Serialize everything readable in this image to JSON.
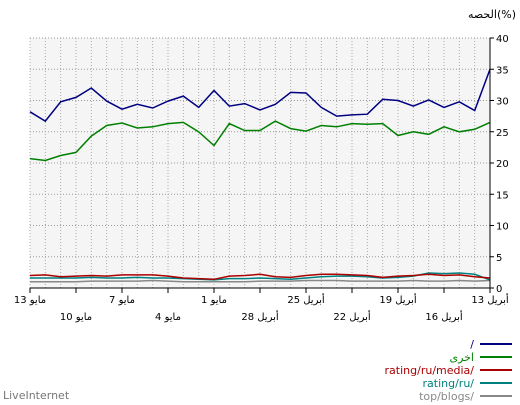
{
  "brand": "LiveInternet",
  "chart_data": {
    "type": "line",
    "ylabel": "الحصه(%)",
    "ylim": [
      0,
      40
    ],
    "yticks": [
      0,
      5,
      10,
      15,
      20,
      25,
      30,
      35,
      40
    ],
    "grid": true,
    "legend_position": "bottom-right",
    "x_tick_labels_upper": [
      "13 مايو",
      "7 مايو",
      "1 مايو",
      "25 أبريل",
      "19 أبريل",
      "13 أبريل"
    ],
    "x_tick_labels_lower": [
      "10 مايو",
      "4 مايو",
      "28 أبريل",
      "22 أبريل",
      "16 أبريل"
    ],
    "series": [
      {
        "name": "/",
        "color": "#000080",
        "values": [
          28.2,
          26.7,
          29.8,
          30.5,
          32.0,
          29.9,
          28.6,
          29.4,
          28.8,
          29.9,
          30.7,
          28.9,
          31.6,
          29.1,
          29.5,
          28.5,
          29.4,
          31.3,
          31.2,
          28.9,
          27.5,
          27.7,
          27.8,
          30.2,
          30.0,
          29.1,
          30.1,
          28.9,
          29.8,
          28.4,
          35.0
        ]
      },
      {
        "name": "اخرى",
        "color": "#008000",
        "values": [
          20.7,
          20.4,
          21.2,
          21.7,
          24.3,
          26.0,
          26.4,
          25.6,
          25.8,
          26.3,
          26.5,
          25.0,
          22.8,
          26.3,
          25.2,
          25.2,
          26.7,
          25.5,
          25.1,
          26.0,
          25.8,
          26.3,
          26.2,
          26.3,
          24.4,
          25.0,
          24.6,
          25.8,
          25.0,
          25.4,
          26.5
        ]
      },
      {
        "name": "rating/ru/media/",
        "color": "#aa0000",
        "values": [
          2.0,
          2.1,
          1.8,
          1.9,
          2.0,
          1.9,
          2.1,
          2.1,
          2.1,
          1.9,
          1.6,
          1.5,
          1.4,
          1.9,
          2.0,
          2.2,
          1.8,
          1.7,
          2.0,
          2.2,
          2.2,
          2.1,
          2.0,
          1.7,
          1.9,
          2.0,
          2.2,
          2.0,
          2.1,
          1.8,
          1.6
        ]
      },
      {
        "name": "rating/ru/",
        "color": "#008080",
        "values": [
          1.6,
          1.6,
          1.6,
          1.6,
          1.7,
          1.6,
          1.6,
          1.7,
          1.6,
          1.6,
          1.5,
          1.4,
          1.3,
          1.5,
          1.5,
          1.6,
          1.5,
          1.4,
          1.6,
          1.8,
          1.9,
          1.9,
          1.8,
          1.6,
          1.7,
          1.9,
          2.4,
          2.3,
          2.4,
          2.2,
          1.3
        ]
      },
      {
        "name": "top/blogs/",
        "color": "#888888",
        "values": [
          1.0,
          1.0,
          1.0,
          1.0,
          1.1,
          1.1,
          1.1,
          1.1,
          1.2,
          1.1,
          1.0,
          1.0,
          1.0,
          1.0,
          1.0,
          1.1,
          1.1,
          1.1,
          1.2,
          1.2,
          1.2,
          1.1,
          1.1,
          1.1,
          1.1,
          1.2,
          1.1,
          1.1,
          1.2,
          1.1,
          1.2
        ]
      }
    ]
  }
}
